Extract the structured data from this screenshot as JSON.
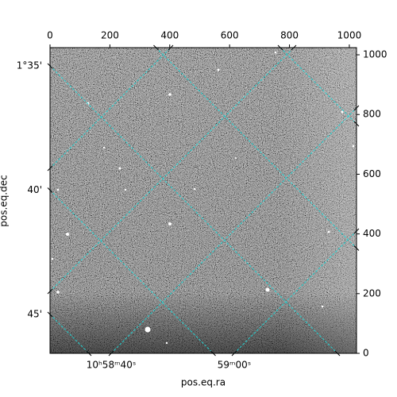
{
  "chart_data": {
    "type": "image",
    "xlabel": "pos.eq.ra",
    "ylabel": "pos.eq.dec",
    "xlim": [
      0,
      1024
    ],
    "ylim": [
      0,
      1024
    ],
    "xticks": [
      0,
      200,
      400,
      600,
      800,
      1000
    ],
    "yticks": [
      0,
      200,
      400,
      600,
      800,
      1000
    ],
    "dec_ticks": [
      {
        "value": 35,
        "label": "1°35'"
      },
      {
        "value": 40,
        "label": "40'"
      },
      {
        "value": 45,
        "label": "45'"
      }
    ],
    "ra_ticks": [
      {
        "value": 40,
        "label": "10ʰ58ᵐ40ˢ"
      },
      {
        "value": 60,
        "label": "59ᵐ00ˢ"
      }
    ],
    "grid": true,
    "grid_color": "#22d3d3"
  }
}
